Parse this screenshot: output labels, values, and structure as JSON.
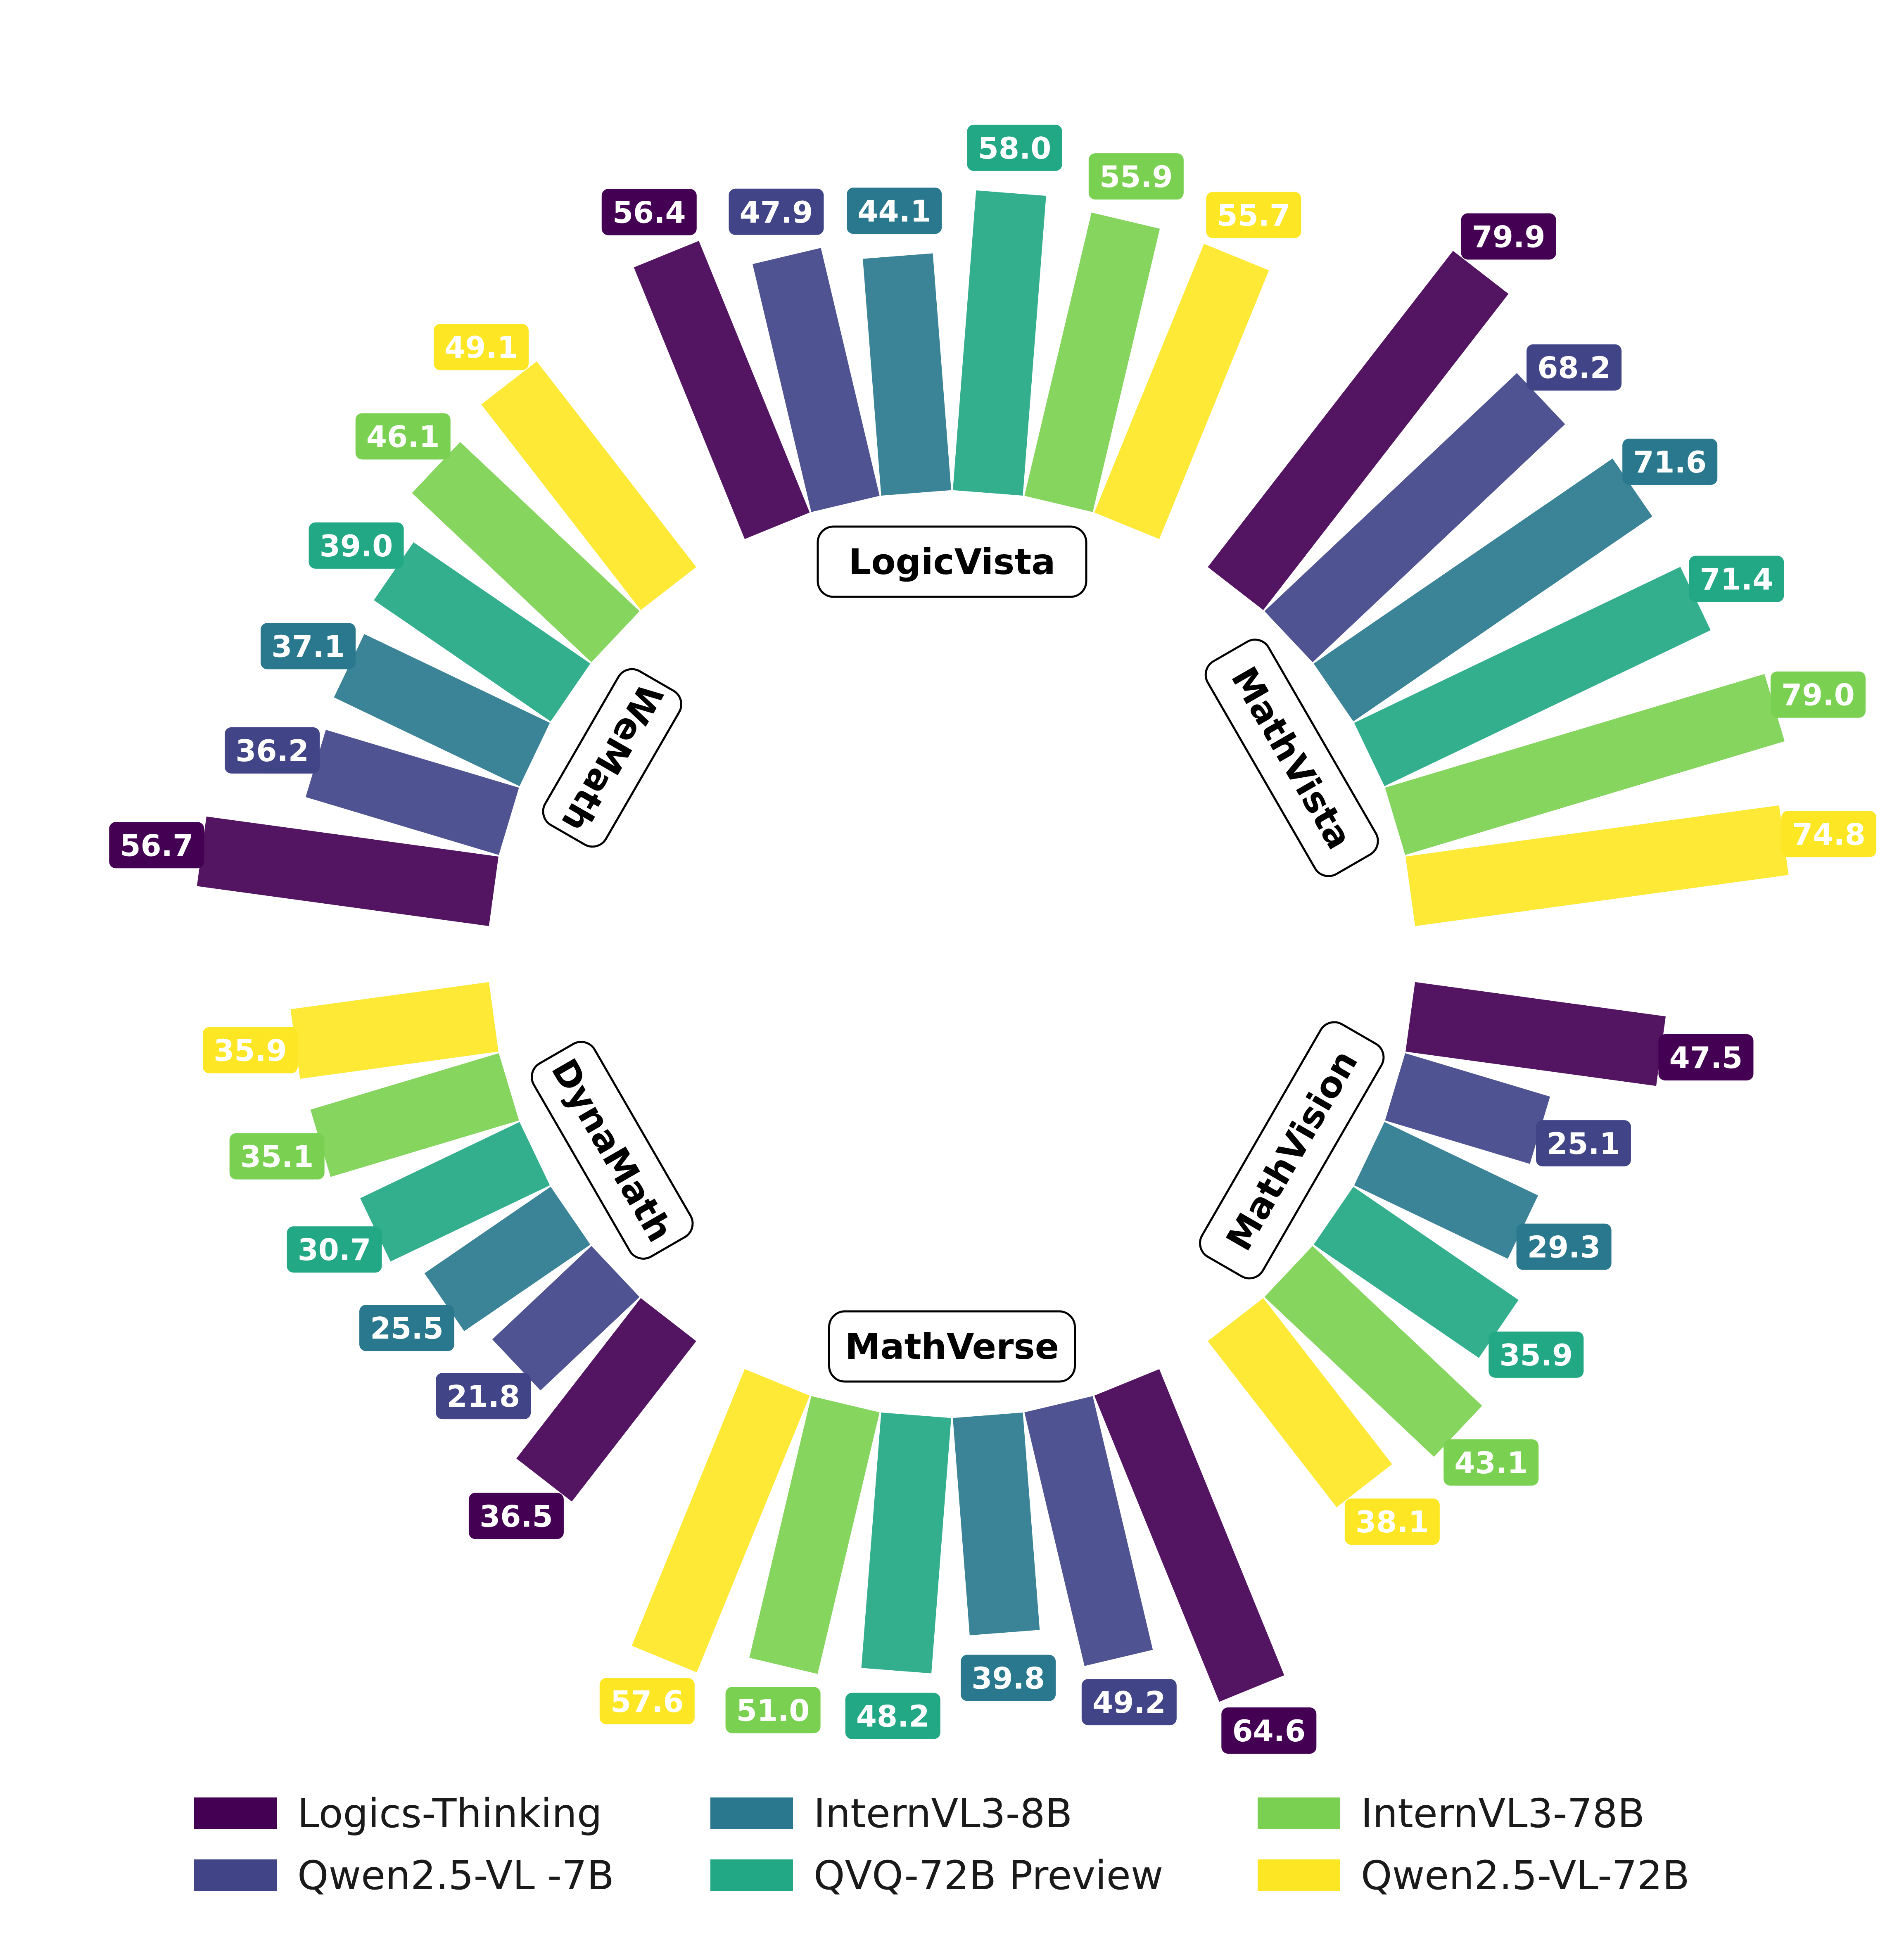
{
  "chart_data": {
    "type": "bar",
    "categories": [
      "LogicVista",
      "MathVista",
      "MathVision",
      "MathVerse",
      "DynaMath",
      "WeMath"
    ],
    "series": [
      {
        "name": "Logics-Thinking",
        "color": "#440154",
        "values": [
          56.4,
          79.9,
          47.5,
          64.6,
          36.5,
          56.7
        ]
      },
      {
        "name": "Qwen2.5-VL -7B",
        "color": "#414487",
        "values": [
          47.9,
          68.2,
          25.1,
          49.2,
          21.8,
          36.2
        ]
      },
      {
        "name": "InternVL3-8B",
        "color": "#2a788e",
        "values": [
          44.1,
          71.6,
          29.3,
          39.8,
          25.5,
          37.1
        ]
      },
      {
        "name": "QVQ-72B Preview",
        "color": "#22a884",
        "values": [
          58.0,
          71.4,
          35.9,
          48.2,
          30.7,
          39.0
        ]
      },
      {
        "name": "InternVL3-78B",
        "color": "#7ad151",
        "values": [
          55.9,
          79.0,
          43.1,
          51.0,
          35.1,
          46.1
        ]
      },
      {
        "name": "Qwen2.5-VL-72B",
        "color": "#fde725",
        "values": [
          55.7,
          74.8,
          38.1,
          57.6,
          35.9,
          49.1
        ]
      }
    ],
    "value_labels": [
      [
        "56.4",
        "79.9",
        "47.5",
        "64.6",
        "36.5",
        "56.7"
      ],
      [
        "47.9",
        "68.2",
        "25.1",
        "49.2",
        "21.8",
        "36.2"
      ],
      [
        "44.1",
        "71.6",
        "29.3",
        "39.8",
        "25.5",
        "37.1"
      ],
      [
        "58.0",
        "71.4",
        "35.9",
        "48.2",
        "30.7",
        "39.0"
      ],
      [
        "55.9",
        "79.0",
        "43.1",
        "51.0",
        "35.1",
        "46.1"
      ],
      [
        "55.7",
        "74.8",
        "38.1",
        "57.6",
        "35.9",
        "49.1"
      ]
    ],
    "legend_position": "bottom",
    "layout": "circular"
  }
}
